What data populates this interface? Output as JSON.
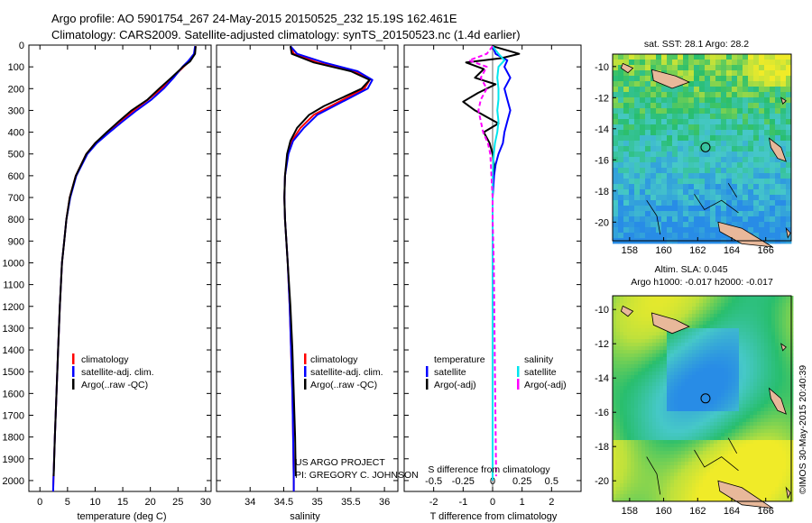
{
  "header": {
    "line1": "Argo profile: AO 5901754_267 24-May-2015 20150525_232 15.19S 162.461E",
    "line2": "Climatology: CARS2009. Satellite-adjusted climatology: synTS_20150523.nc (1.4d earlier)"
  },
  "colors": {
    "climatology": "#ff0000",
    "satellite": "#0000ff",
    "argo": "#000000",
    "salinity_satellite": "#00e5ee",
    "salinity_argo": "#ff00ff",
    "land": "#e8b89a"
  },
  "chart_data": [
    {
      "type": "line",
      "name": "temperature-profile",
      "xlabel": "temperature (deg C)",
      "ylabel": "",
      "xlim": [
        -2,
        31
      ],
      "ylim": [
        2050,
        0
      ],
      "xticks": [
        0,
        5,
        10,
        15,
        20,
        25,
        30
      ],
      "yticks": [
        0,
        100,
        200,
        300,
        400,
        500,
        600,
        700,
        800,
        900,
        1000,
        1100,
        1200,
        1300,
        1400,
        1500,
        1600,
        1700,
        1800,
        1900,
        2000
      ],
      "legend": [
        "climatology",
        "satellite-adj. clim.",
        "Argo(..raw -QC)"
      ],
      "series": [
        {
          "name": "climatology",
          "depth": [
            5,
            40,
            75,
            100,
            150,
            200,
            250,
            300,
            350,
            400,
            450,
            500,
            600,
            700,
            800,
            900,
            1000,
            1200,
            1400,
            1600,
            1800,
            2000,
            2050
          ],
          "values": [
            28.2,
            28.0,
            27.0,
            26.0,
            24.0,
            22.0,
            19.6,
            17.0,
            14.6,
            12.3,
            10.0,
            8.4,
            6.5,
            5.4,
            4.8,
            4.4,
            4.0,
            3.6,
            3.3,
            3.0,
            2.7,
            2.45,
            2.4
          ]
        },
        {
          "name": "satellite-adj. clim.",
          "depth": [
            5,
            40,
            75,
            100,
            150,
            200,
            250,
            300,
            350,
            400,
            450,
            500,
            600,
            700,
            800,
            900,
            1000,
            1200,
            1400,
            1600,
            1800,
            2000,
            2050
          ],
          "values": [
            28.1,
            27.9,
            26.8,
            25.8,
            24.2,
            22.4,
            20.2,
            17.5,
            15.0,
            12.6,
            10.3,
            8.6,
            6.6,
            5.5,
            4.8,
            4.4,
            4.0,
            3.6,
            3.3,
            3.0,
            2.7,
            2.45,
            2.4
          ]
        },
        {
          "name": "Argo(..raw -QC)",
          "depth": [
            5,
            40,
            75,
            100,
            150,
            200,
            250,
            300,
            350,
            400,
            450,
            500,
            600,
            700,
            800,
            900,
            1000,
            1200,
            1400,
            1600,
            1800,
            1980
          ],
          "values": [
            28.2,
            28.1,
            27.2,
            25.9,
            23.8,
            21.6,
            19.5,
            16.6,
            14.3,
            12.1,
            10.0,
            8.4,
            6.5,
            5.4,
            4.8,
            4.4,
            4.0,
            3.6,
            3.3,
            3.0,
            2.7,
            2.5
          ]
        }
      ]
    },
    {
      "type": "line",
      "name": "salinity-profile",
      "xlabel": "salinity",
      "ylabel": "",
      "xlim": [
        33.5,
        36.2
      ],
      "ylim": [
        2050,
        0
      ],
      "xticks": [
        34,
        34.5,
        35,
        35.5,
        36
      ],
      "legend": [
        "climatology",
        "satellite-adj. clim.",
        "Argo(..raw -QC)"
      ],
      "series": [
        {
          "name": "climatology",
          "depth": [
            5,
            40,
            80,
            120,
            160,
            200,
            240,
            280,
            320,
            380,
            440,
            500,
            600,
            700,
            800,
            900,
            1000,
            1200,
            1400,
            1600,
            1800,
            2000,
            2050
          ],
          "values": [
            34.6,
            34.65,
            35.0,
            35.55,
            35.78,
            35.7,
            35.45,
            35.2,
            34.95,
            34.75,
            34.62,
            34.56,
            34.52,
            34.51,
            34.52,
            34.54,
            34.56,
            34.59,
            34.61,
            34.63,
            34.64,
            34.65,
            34.65
          ]
        },
        {
          "name": "satellite-adj. clim.",
          "depth": [
            5,
            40,
            80,
            120,
            160,
            200,
            240,
            280,
            320,
            380,
            440,
            500,
            600,
            700,
            800,
            900,
            1000,
            1200,
            1400,
            1600,
            1800,
            2000,
            2050
          ],
          "values": [
            34.6,
            34.7,
            35.1,
            35.6,
            35.82,
            35.75,
            35.5,
            35.25,
            35.0,
            34.8,
            34.64,
            34.57,
            34.52,
            34.51,
            34.52,
            34.54,
            34.56,
            34.59,
            34.61,
            34.63,
            34.64,
            34.65,
            34.65
          ]
        },
        {
          "name": "Argo(..raw -QC)",
          "depth": [
            5,
            40,
            80,
            120,
            160,
            200,
            240,
            280,
            320,
            380,
            440,
            500,
            600,
            700,
            800,
            900,
            1000,
            1200,
            1400,
            1600,
            1800,
            1980
          ],
          "values": [
            34.6,
            34.62,
            34.95,
            35.5,
            35.78,
            35.66,
            35.38,
            35.1,
            34.88,
            34.7,
            34.6,
            34.55,
            34.52,
            34.51,
            34.52,
            34.54,
            34.56,
            34.6,
            34.63,
            34.65,
            34.67,
            34.68
          ]
        }
      ]
    },
    {
      "type": "line",
      "name": "difference-profile",
      "xlabel": "T difference from climatology",
      "title_inner": "S difference from climatology",
      "xlim": [
        -3,
        3
      ],
      "ylim": [
        2050,
        0
      ],
      "xticks": [
        -2,
        -1,
        0,
        1,
        2
      ],
      "xticks_top": [
        -0.5,
        -0.25,
        0,
        0.25,
        0.5
      ],
      "legend_left_title": "temperature",
      "legend_right_title": "salinity",
      "legend": [
        "satellite",
        "Argo(-adj)",
        "satellite",
        "Argo(-adj)"
      ],
      "series": [
        {
          "name": "T satellite",
          "depth": [
            5,
            40,
            70,
            100,
            150,
            200,
            250,
            300,
            350,
            400,
            450,
            500,
            550,
            600,
            700,
            800,
            1000,
            1500,
            2000
          ],
          "values": [
            0,
            0.1,
            0.5,
            0.4,
            0.6,
            0.4,
            0.5,
            0.6,
            0.5,
            0.4,
            0.35,
            0.2,
            0.1,
            0.05,
            0,
            0,
            0,
            0,
            0
          ]
        },
        {
          "name": "T Argo(-adj)",
          "depth": [
            5,
            40,
            60,
            80,
            110,
            150,
            180,
            220,
            260,
            300,
            330,
            360,
            400,
            450,
            500,
            550,
            600,
            700,
            800,
            1000,
            1500,
            1980
          ],
          "values": [
            0,
            0.9,
            0.3,
            -0.9,
            -0.3,
            -0.6,
            0.1,
            -0.5,
            -1.0,
            -0.6,
            -0.2,
            0.2,
            -0.3,
            -0.1,
            0.0,
            0.05,
            0.0,
            0.0,
            0.0,
            0.0,
            0.0,
            0.0
          ]
        },
        {
          "name": "S satellite",
          "depth": [
            5,
            40,
            70,
            100,
            150,
            200,
            250,
            300,
            350,
            400,
            450,
            500,
            600,
            700,
            800,
            1000,
            1500,
            2000
          ],
          "values": [
            0,
            0.05,
            0.1,
            0.05,
            0.04,
            0.05,
            0.05,
            0.04,
            0.05,
            0.04,
            0.02,
            0.01,
            0,
            0,
            0,
            0,
            0,
            0
          ]
        },
        {
          "name": "S Argo(-adj)",
          "depth": [
            5,
            40,
            70,
            100,
            150,
            200,
            250,
            300,
            350,
            400,
            450,
            500,
            600,
            700,
            800,
            1000,
            1500,
            1980
          ],
          "values": [
            0,
            -0.05,
            -0.2,
            -0.05,
            -0.1,
            -0.05,
            -0.1,
            -0.12,
            -0.1,
            -0.08,
            -0.04,
            -0.02,
            -0.01,
            0,
            0,
            0.01,
            0.02,
            0.03
          ]
        }
      ]
    }
  ],
  "map_top": {
    "title": "sat. SST: 28.1  Argo: 28.2",
    "xticks": [
      "158",
      "160",
      "162",
      "164",
      "166"
    ],
    "yticks": [
      "-10",
      "-12",
      "-14",
      "-16",
      "-18",
      "-20"
    ]
  },
  "map_bottom": {
    "title1": "Altim. SLA: 0.045",
    "title2": "Argo h1000: -0.017 h2000: -0.017",
    "xticks": [
      "158",
      "160",
      "162",
      "164",
      "166"
    ],
    "yticks": [
      "-10",
      "-12",
      "-14",
      "-16",
      "-18",
      "-20"
    ]
  },
  "credits": {
    "line1": "US ARGO PROJECT",
    "line2": "PI: GREGORY C. JOHNSON",
    "stamp": "©IMOS 30-May-2015 20:40:39"
  }
}
